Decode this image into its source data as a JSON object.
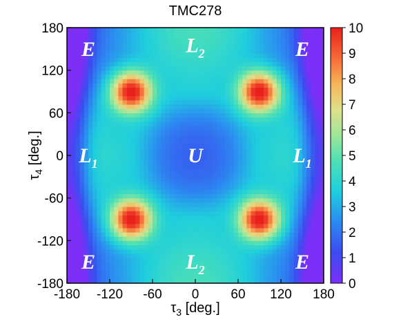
{
  "chart_data": {
    "type": "heatmap",
    "title": "TMC278",
    "xlabel": {
      "base": "τ",
      "sub": "3",
      "rest": " [deg.]"
    },
    "ylabel": {
      "base": "τ",
      "sub": "4",
      "rest": " [deg.]"
    },
    "xlim": [
      -180,
      180
    ],
    "ylim": [
      -180,
      180
    ],
    "xticks": [
      "-180",
      "-120",
      "-60",
      "0",
      "60",
      "120",
      "180"
    ],
    "yticks": [
      "180",
      "120",
      "60",
      "0",
      "-60",
      "-120",
      "-180"
    ],
    "colorbar": {
      "range": [
        0,
        10
      ],
      "ticks": [
        "10",
        "9",
        "8",
        "7",
        "6",
        "5",
        "4",
        "3",
        "2",
        "1",
        "0"
      ],
      "colormap": "rainbow/jet (violet → blue → cyan → green → yellow → orange → red)"
    },
    "features": [
      {
        "name": "maxima",
        "points": [
          [
            -90,
            90
          ],
          [
            90,
            90
          ],
          [
            -90,
            -90
          ],
          [
            90,
            -90
          ]
        ],
        "value": 9.5
      },
      {
        "name": "minima",
        "points": [
          [
            -180,
            180
          ],
          [
            180,
            180
          ],
          [
            -180,
            -180
          ],
          [
            180,
            -180
          ],
          [
            -180,
            0
          ],
          [
            180,
            0
          ]
        ],
        "value": 0
      },
      {
        "name": "center",
        "points": [
          [
            0,
            0
          ]
        ],
        "value": 2.5
      }
    ],
    "region_labels": [
      {
        "text": "E",
        "x": -150,
        "y": 150
      },
      {
        "text": "E",
        "x": 150,
        "y": 150
      },
      {
        "text": "E",
        "x": -150,
        "y": -150
      },
      {
        "text": "E",
        "x": 150,
        "y": -150
      },
      {
        "text": "L",
        "sub": "2",
        "x": 0,
        "y": 155
      },
      {
        "text": "L",
        "sub": "2",
        "x": 0,
        "y": -150
      },
      {
        "text": "L",
        "sub": "1",
        "x": -150,
        "y": 0
      },
      {
        "text": "L",
        "sub": "1",
        "x": 150,
        "y": 0
      },
      {
        "text": "U",
        "x": 0,
        "y": 0
      }
    ]
  }
}
